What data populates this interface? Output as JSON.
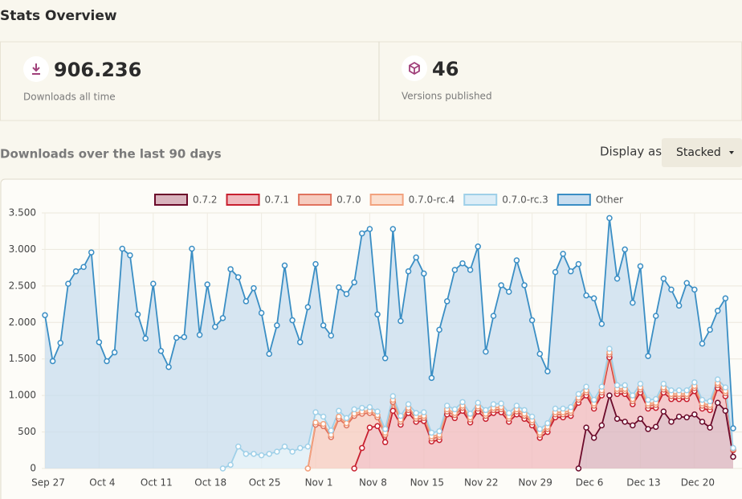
{
  "header": {
    "title": "Stats Overview"
  },
  "stats": [
    {
      "value": "906.236",
      "label": "Downloads all time"
    },
    {
      "value": "46",
      "label": "Versions published"
    }
  ],
  "section_title": "Downloads over the last 90 days",
  "display": {
    "label": "Display as",
    "selected": "Stacked"
  },
  "chart_data": {
    "type": "area",
    "stacked": true,
    "grid": true,
    "categories": [
      "Sep 27",
      null,
      null,
      null,
      null,
      null,
      null,
      "Oct 4",
      null,
      null,
      null,
      null,
      null,
      null,
      "Oct 11",
      null,
      null,
      null,
      null,
      null,
      null,
      "Oct 18",
      null,
      null,
      null,
      null,
      null,
      null,
      "Oct 25",
      null,
      null,
      null,
      null,
      null,
      null,
      "Nov 1",
      null,
      null,
      null,
      null,
      null,
      null,
      "Nov 8",
      null,
      null,
      null,
      null,
      null,
      null,
      "Nov 15",
      null,
      null,
      null,
      null,
      null,
      null,
      "Nov 22",
      null,
      null,
      null,
      null,
      null,
      null,
      "Nov 29",
      null,
      null,
      null,
      null,
      null,
      null,
      "Dec 6",
      null,
      null,
      null,
      null,
      null,
      null,
      "Dec 13",
      null,
      null,
      null,
      null,
      null,
      null,
      "Dec 20",
      null,
      null,
      null,
      null,
      null
    ],
    "ylim": [
      0,
      3500
    ],
    "yticks": [
      0,
      500,
      {
        "value": 1000,
        "label": "1.000"
      },
      {
        "value": 1500,
        "label": "1.500"
      },
      {
        "value": 2000,
        "label": "2.000"
      },
      {
        "value": 2500,
        "label": "2.500"
      },
      {
        "value": 3000,
        "label": "3.000"
      },
      {
        "value": 3500,
        "label": "3.500"
      }
    ],
    "series": [
      {
        "name": "0.7.2",
        "color": "#6b0a2a",
        "fill": "#d9b3bd",
        "values": [
          null,
          null,
          null,
          null,
          null,
          null,
          null,
          null,
          null,
          null,
          null,
          null,
          null,
          null,
          null,
          null,
          null,
          null,
          null,
          null,
          null,
          null,
          null,
          null,
          null,
          null,
          null,
          null,
          null,
          null,
          null,
          null,
          null,
          null,
          null,
          null,
          null,
          null,
          null,
          null,
          null,
          null,
          null,
          null,
          null,
          null,
          null,
          null,
          null,
          null,
          null,
          null,
          null,
          null,
          null,
          null,
          null,
          null,
          null,
          null,
          null,
          null,
          null,
          null,
          null,
          null,
          null,
          null,
          null,
          0,
          560,
          420,
          590,
          1000,
          680,
          640,
          590,
          680,
          540,
          570,
          780,
          640,
          710,
          700,
          740,
          640,
          560,
          900,
          790,
          160
        ]
      },
      {
        "name": "0.7.1",
        "color": "#c8202f",
        "fill": "#f0b9be",
        "values": [
          null,
          null,
          null,
          null,
          null,
          null,
          null,
          null,
          null,
          null,
          null,
          null,
          null,
          null,
          null,
          null,
          null,
          null,
          null,
          null,
          null,
          null,
          null,
          null,
          null,
          null,
          null,
          null,
          null,
          null,
          null,
          null,
          null,
          null,
          null,
          null,
          null,
          null,
          null,
          null,
          0,
          280,
          560,
          580,
          360,
          790,
          600,
          760,
          640,
          650,
          370,
          390,
          740,
          690,
          790,
          630,
          780,
          680,
          760,
          770,
          640,
          740,
          680,
          590,
          420,
          500,
          700,
          700,
          720,
          900,
          440,
          400,
          410,
          520,
          340,
          380,
          290,
          360,
          280,
          260,
          260,
          310,
          240,
          250,
          320,
          180,
          240,
          200,
          200,
          90
        ]
      },
      {
        "name": "0.7.0",
        "color": "#e0735e",
        "fill": "#f6cbbf",
        "values": [
          null,
          null,
          null,
          null,
          null,
          null,
          null,
          null,
          null,
          null,
          null,
          null,
          null,
          null,
          null,
          null,
          null,
          null,
          null,
          null,
          null,
          null,
          null,
          null,
          null,
          null,
          null,
          null,
          null,
          null,
          null,
          null,
          null,
          null,
          0,
          600,
          580,
          430,
          680,
          590,
          720,
          470,
          200,
          120,
          100,
          120,
          40,
          40,
          40,
          40,
          40,
          40,
          40,
          40,
          40,
          40,
          40,
          40,
          40,
          40,
          40,
          40,
          40,
          40,
          40,
          40,
          40,
          40,
          40,
          40,
          40,
          40,
          40,
          40,
          40,
          40,
          40,
          40,
          40,
          40,
          40,
          40,
          40,
          40,
          40,
          40,
          40,
          40,
          40,
          10
        ]
      },
      {
        "name": "0.7.0-rc.4",
        "color": "#f2a27e",
        "fill": "#fbdfcf",
        "values": [
          null,
          null,
          null,
          null,
          null,
          null,
          null,
          null,
          null,
          null,
          null,
          null,
          null,
          null,
          null,
          null,
          null,
          null,
          null,
          null,
          null,
          null,
          null,
          null,
          null,
          null,
          null,
          null,
          null,
          null,
          null,
          null,
          null,
          null,
          0,
          30,
          30,
          30,
          30,
          30,
          30,
          30,
          30,
          30,
          30,
          30,
          30,
          30,
          30,
          30,
          30,
          30,
          30,
          30,
          30,
          30,
          30,
          30,
          30,
          30,
          30,
          30,
          30,
          30,
          30,
          30,
          30,
          30,
          30,
          30,
          30,
          30,
          30,
          30,
          30,
          30,
          30,
          30,
          30,
          30,
          30,
          30,
          30,
          30,
          30,
          30,
          30,
          30,
          30,
          10
        ]
      },
      {
        "name": "0.7.0-rc.3",
        "color": "#9fd0e8",
        "fill": "#dcedf7",
        "values": [
          null,
          null,
          null,
          null,
          null,
          null,
          null,
          null,
          null,
          null,
          null,
          null,
          null,
          null,
          null,
          null,
          null,
          null,
          null,
          null,
          null,
          null,
          null,
          0,
          50,
          300,
          200,
          200,
          180,
          200,
          230,
          300,
          230,
          280,
          300,
          140,
          100,
          60,
          80,
          70,
          60,
          50,
          50,
          50,
          50,
          50,
          50,
          50,
          50,
          50,
          50,
          50,
          50,
          50,
          50,
          50,
          50,
          50,
          50,
          50,
          50,
          50,
          50,
          50,
          50,
          50,
          50,
          50,
          50,
          50,
          50,
          50,
          50,
          50,
          50,
          50,
          50,
          50,
          50,
          50,
          50,
          50,
          50,
          50,
          50,
          50,
          50,
          50,
          50,
          10
        ]
      },
      {
        "name": "Other",
        "color": "#3a8ec4",
        "fill": "#c8ddef",
        "values": [
          2100,
          1470,
          1720,
          2530,
          2700,
          2760,
          2960,
          1730,
          1470,
          1590,
          3010,
          2920,
          2110,
          1780,
          2530,
          1610,
          1390,
          1790,
          1800,
          3010,
          1830,
          2520,
          1940,
          2060,
          2680,
          2320,
          2090,
          2270,
          1950,
          1370,
          1730,
          2480,
          1800,
          1450,
          1910,
          2030,
          1250,
          1300,
          1690,
          1700,
          1740,
          2390,
          2440,
          1330,
          970,
          2290,
          1300,
          1820,
          2130,
          1900,
          750,
          1390,
          1430,
          1910,
          1900,
          1970,
          2140,
          800,
          1210,
          1620,
          1660,
          1990,
          1710,
          1320,
          1030,
          710,
          1870,
          2120,
          1860,
          1780,
          1250,
          1390,
          860,
          1790,
          1460,
          1860,
          1270,
          1610,
          600,
          1140,
          1440,
          1380,
          1160,
          1470,
          1270,
          770,
          980,
          940,
          1220,
          270
        ]
      }
    ]
  }
}
